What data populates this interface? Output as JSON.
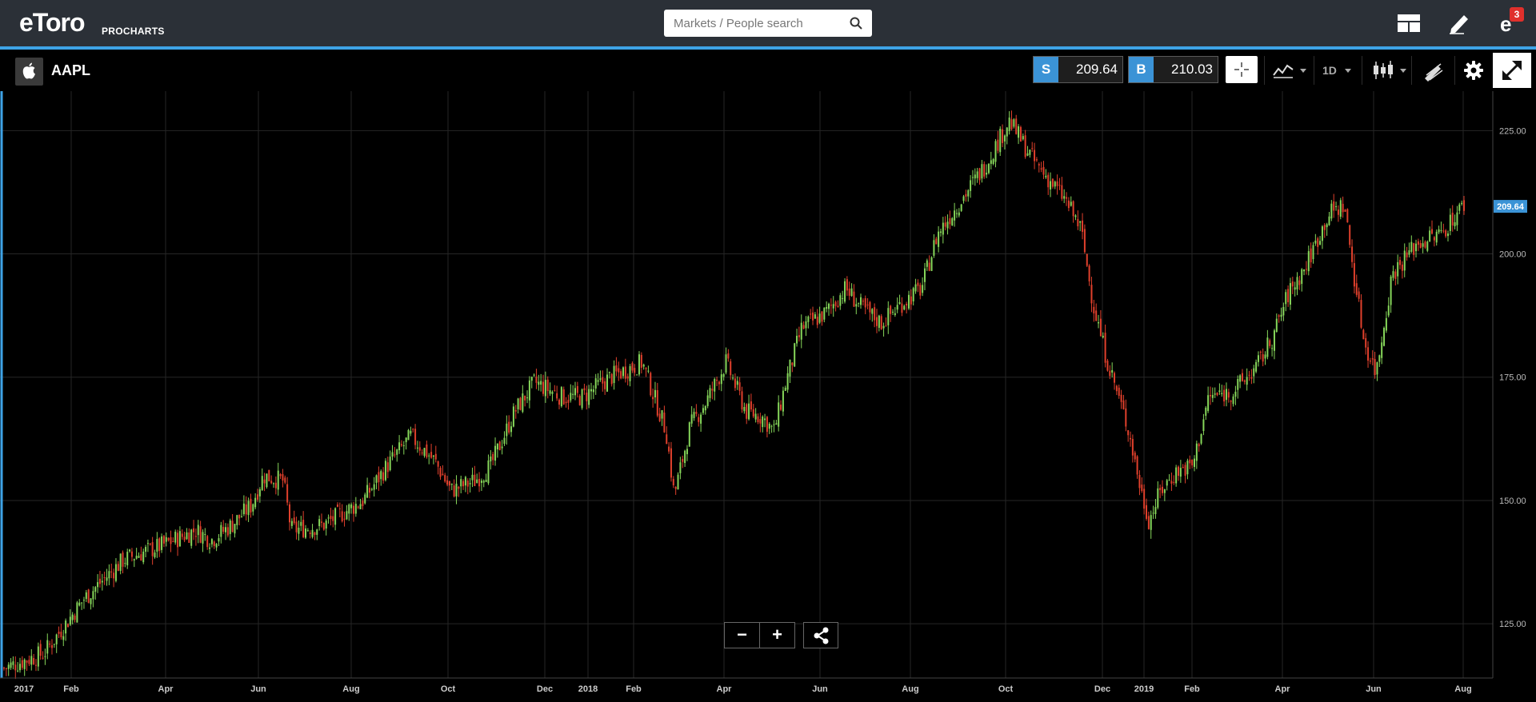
{
  "header": {
    "logo_text": "eToro",
    "logo_tag": "PROCHARTS",
    "search_placeholder": "Markets / People search",
    "notifications_count": "3"
  },
  "toolbar": {
    "symbol": "AAPL",
    "sell": {
      "label": "S",
      "price": "209.64"
    },
    "buy": {
      "label": "B",
      "price": "210.03"
    },
    "timeframe": "1D"
  },
  "chart_data": {
    "type": "candlestick",
    "y_axis": {
      "ticks": [
        "225.00",
        "200.00",
        "175.00",
        "150.00",
        "125.00"
      ],
      "range": [
        114,
        233
      ]
    },
    "x_axis": {
      "ticks": [
        "2017",
        "Feb",
        "Apr",
        "Jun",
        "Aug",
        "Oct",
        "Dec",
        "2018",
        "Feb",
        "Apr",
        "Jun",
        "Aug",
        "Oct",
        "Dec",
        "2019",
        "Feb",
        "Apr",
        "Jun",
        "Aug"
      ]
    },
    "current_price_label": "209.64",
    "grid": true,
    "colors": {
      "up": "#86d65a",
      "down": "#e0402c",
      "grid": "#262626",
      "price_tag": "#3b93d6"
    },
    "price_path": [
      [
        0,
        116
      ],
      [
        10,
        119
      ],
      [
        20,
        130
      ],
      [
        30,
        138
      ],
      [
        40,
        141
      ],
      [
        48,
        144
      ],
      [
        52,
        142
      ],
      [
        57,
        145
      ],
      [
        62,
        149
      ],
      [
        65,
        155
      ],
      [
        70,
        154
      ],
      [
        72,
        144
      ],
      [
        80,
        145
      ],
      [
        90,
        150
      ],
      [
        96,
        157
      ],
      [
        102,
        163
      ],
      [
        108,
        158
      ],
      [
        112,
        152
      ],
      [
        118,
        154
      ],
      [
        122,
        157
      ],
      [
        128,
        168
      ],
      [
        133,
        174
      ],
      [
        140,
        171
      ],
      [
        145,
        171
      ],
      [
        152,
        175
      ],
      [
        160,
        178
      ],
      [
        166,
        164
      ],
      [
        168,
        151
      ],
      [
        172,
        165
      ],
      [
        176,
        170
      ],
      [
        181,
        178
      ],
      [
        186,
        168
      ],
      [
        190,
        167
      ],
      [
        193,
        164
      ],
      [
        196,
        174
      ],
      [
        200,
        185
      ],
      [
        206,
        188
      ],
      [
        211,
        193
      ],
      [
        215,
        189
      ],
      [
        220,
        186
      ],
      [
        225,
        190
      ],
      [
        230,
        193
      ],
      [
        234,
        204
      ],
      [
        240,
        211
      ],
      [
        246,
        218
      ],
      [
        252,
        227
      ],
      [
        258,
        219
      ],
      [
        262,
        215
      ],
      [
        266,
        211
      ],
      [
        270,
        205
      ],
      [
        273,
        190
      ],
      [
        276,
        180
      ],
      [
        279,
        172
      ],
      [
        282,
        164
      ],
      [
        285,
        152
      ],
      [
        287,
        146
      ],
      [
        290,
        152
      ],
      [
        294,
        156
      ],
      [
        298,
        157
      ],
      [
        302,
        171
      ],
      [
        308,
        172
      ],
      [
        314,
        177
      ],
      [
        318,
        183
      ],
      [
        322,
        192
      ],
      [
        326,
        197
      ],
      [
        332,
        208
      ],
      [
        336,
        210
      ],
      [
        338,
        198
      ],
      [
        341,
        182
      ],
      [
        344,
        176
      ],
      [
        348,
        196
      ],
      [
        354,
        202
      ],
      [
        360,
        204
      ],
      [
        366,
        210
      ]
    ]
  },
  "controls": {
    "zoom_out": "−",
    "zoom_in": "+"
  }
}
